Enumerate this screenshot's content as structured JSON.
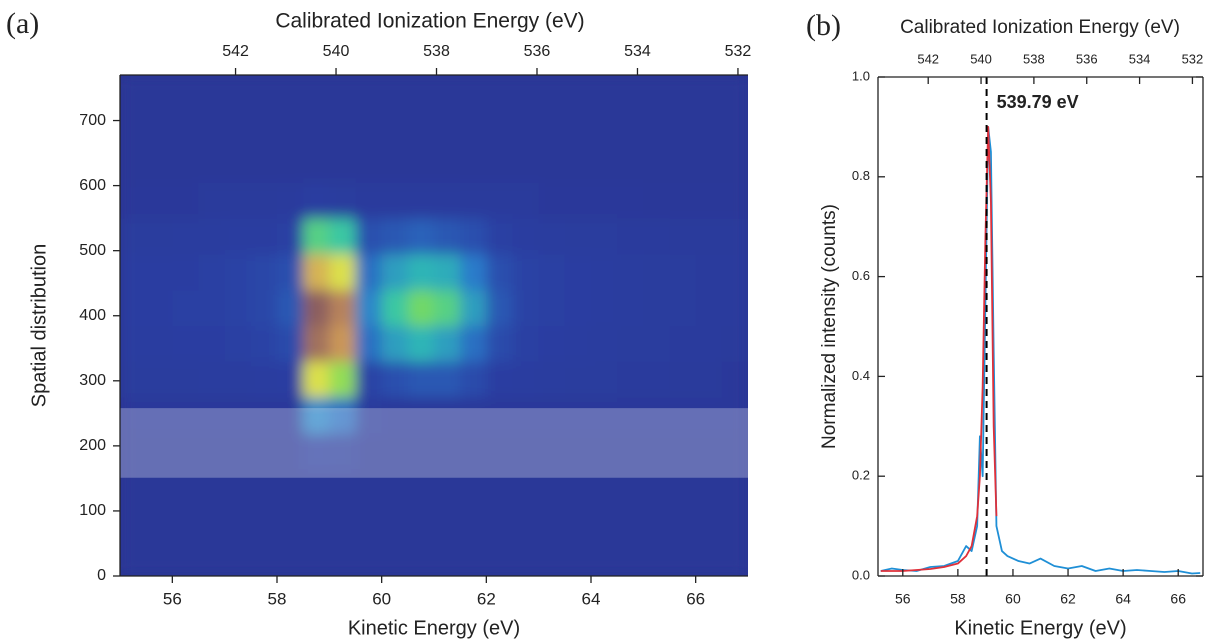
{
  "chart_data": [
    {
      "type": "heatmap",
      "panel_label": "(a)",
      "x2_label": "Calibrated Ionization Energy (eV)",
      "xlabel": "Kinetic Energy (eV)",
      "ylabel": "Spatial distribution",
      "xlim": [
        55,
        67
      ],
      "xticks": [
        56,
        58,
        60,
        62,
        64,
        66
      ],
      "ylim": [
        0,
        770
      ],
      "yticks": [
        0,
        100,
        200,
        300,
        400,
        500,
        600,
        700
      ],
      "x2lim": [
        544.3,
        531.8
      ],
      "x2ticks": [
        542,
        540,
        538,
        536,
        534,
        532
      ],
      "x_bins": [
        55,
        55.5,
        56,
        56.5,
        57,
        57.5,
        58,
        58.5,
        59,
        59.5,
        60,
        60.5,
        61,
        61.5,
        62,
        62.5,
        63,
        63.5,
        64,
        64.5,
        65,
        65.5,
        66,
        66.5,
        67
      ],
      "y_bins": [
        0,
        55,
        110,
        165,
        220,
        275,
        330,
        385,
        440,
        495,
        550,
        605,
        660,
        715,
        770
      ],
      "z": [
        [
          0.05,
          0.05,
          0.05,
          0.05,
          0.05,
          0.05,
          0.05,
          0.05,
          0.05,
          0.05,
          0.05,
          0.05,
          0.05,
          0.05,
          0.05,
          0.05,
          0.05,
          0.05,
          0.05,
          0.05,
          0.05,
          0.05,
          0.05,
          0.05
        ],
        [
          0.05,
          0.05,
          0.05,
          0.05,
          0.05,
          0.05,
          0.05,
          0.05,
          0.05,
          0.05,
          0.05,
          0.05,
          0.05,
          0.05,
          0.05,
          0.05,
          0.05,
          0.05,
          0.05,
          0.05,
          0.05,
          0.05,
          0.05,
          0.05
        ],
        [
          0.05,
          0.05,
          0.05,
          0.05,
          0.05,
          0.05,
          0.05,
          0.05,
          0.05,
          0.05,
          0.05,
          0.05,
          0.05,
          0.05,
          0.05,
          0.05,
          0.05,
          0.05,
          0.05,
          0.05,
          0.05,
          0.05,
          0.05,
          0.05
        ],
        [
          0.05,
          0.05,
          0.05,
          0.05,
          0.05,
          0.05,
          0.05,
          0.12,
          0.1,
          0.05,
          0.05,
          0.05,
          0.05,
          0.05,
          0.05,
          0.05,
          0.05,
          0.05,
          0.05,
          0.05,
          0.05,
          0.05,
          0.05,
          0.05
        ],
        [
          0.07,
          0.07,
          0.07,
          0.07,
          0.07,
          0.07,
          0.07,
          0.3,
          0.25,
          0.08,
          0.07,
          0.07,
          0.07,
          0.07,
          0.07,
          0.07,
          0.07,
          0.07,
          0.07,
          0.07,
          0.07,
          0.07,
          0.07,
          0.07
        ],
        [
          0.1,
          0.1,
          0.1,
          0.11,
          0.11,
          0.12,
          0.13,
          0.7,
          0.6,
          0.15,
          0.18,
          0.2,
          0.2,
          0.17,
          0.13,
          0.12,
          0.11,
          0.1,
          0.1,
          0.09,
          0.09,
          0.08,
          0.08,
          0.07
        ],
        [
          0.12,
          0.12,
          0.13,
          0.13,
          0.14,
          0.15,
          0.17,
          0.95,
          0.85,
          0.25,
          0.35,
          0.4,
          0.35,
          0.25,
          0.17,
          0.14,
          0.13,
          0.12,
          0.11,
          0.1,
          0.1,
          0.09,
          0.09,
          0.08
        ],
        [
          0.13,
          0.13,
          0.14,
          0.14,
          0.15,
          0.16,
          0.2,
          1.0,
          0.9,
          0.3,
          0.45,
          0.55,
          0.5,
          0.35,
          0.2,
          0.15,
          0.14,
          0.13,
          0.12,
          0.11,
          0.1,
          0.1,
          0.09,
          0.09
        ],
        [
          0.13,
          0.13,
          0.13,
          0.14,
          0.15,
          0.16,
          0.18,
          0.8,
          0.7,
          0.25,
          0.35,
          0.4,
          0.38,
          0.28,
          0.18,
          0.15,
          0.14,
          0.13,
          0.12,
          0.11,
          0.1,
          0.1,
          0.09,
          0.09
        ],
        [
          0.1,
          0.1,
          0.11,
          0.11,
          0.12,
          0.12,
          0.14,
          0.5,
          0.45,
          0.18,
          0.2,
          0.22,
          0.2,
          0.18,
          0.14,
          0.12,
          0.11,
          0.1,
          0.1,
          0.09,
          0.09,
          0.08,
          0.08,
          0.08
        ],
        [
          0.07,
          0.07,
          0.07,
          0.08,
          0.08,
          0.08,
          0.09,
          0.12,
          0.1,
          0.09,
          0.09,
          0.09,
          0.09,
          0.08,
          0.08,
          0.08,
          0.07,
          0.07,
          0.07,
          0.07,
          0.06,
          0.06,
          0.06,
          0.06
        ],
        [
          0.05,
          0.05,
          0.05,
          0.05,
          0.05,
          0.05,
          0.05,
          0.05,
          0.05,
          0.05,
          0.05,
          0.05,
          0.05,
          0.05,
          0.05,
          0.05,
          0.05,
          0.05,
          0.05,
          0.05,
          0.05,
          0.05,
          0.05,
          0.05
        ],
        [
          0.05,
          0.05,
          0.05,
          0.05,
          0.05,
          0.05,
          0.05,
          0.05,
          0.05,
          0.05,
          0.05,
          0.05,
          0.05,
          0.05,
          0.05,
          0.05,
          0.05,
          0.05,
          0.05,
          0.05,
          0.05,
          0.05,
          0.05,
          0.05
        ],
        [
          0.05,
          0.05,
          0.05,
          0.05,
          0.05,
          0.05,
          0.05,
          0.05,
          0.05,
          0.05,
          0.05,
          0.05,
          0.05,
          0.05,
          0.05,
          0.05,
          0.05,
          0.05,
          0.05,
          0.05,
          0.05,
          0.05,
          0.05,
          0.05
        ]
      ],
      "colormap": [
        "#2a3492",
        "#2b3fa3",
        "#2b7fcc",
        "#2fc3b0",
        "#7ddc5a",
        "#e6e04a",
        "#c9935a",
        "#8c5f5f"
      ],
      "highlight": [
        151,
        258
      ],
      "highlight_color": "#ffffff",
      "highlight_opacity": 0.28
    },
    {
      "type": "line",
      "panel_label": "(b)",
      "x2_label": "Calibrated Ionization Energy (eV)",
      "xlabel": "Kinetic Energy (eV)",
      "ylabel": "Normalized intensity (counts)",
      "xlim": [
        55.1,
        66.9
      ],
      "xticks": [
        56,
        58,
        60,
        62,
        64,
        66
      ],
      "ylim": [
        0,
        1.0
      ],
      "yticks": [
        {
          "value": 0,
          "label": "0.0"
        },
        0.2,
        0.4,
        0.6,
        0.8,
        {
          "value": 1.0,
          "label": "1.0"
        }
      ],
      "x2lim": [
        543.9,
        531.6
      ],
      "x2ticks": [
        542,
        540,
        538,
        536,
        534,
        532
      ],
      "x": [
        55.2,
        55.6,
        56.0,
        56.5,
        57.0,
        57.5,
        58.0,
        58.3,
        58.5,
        58.7,
        58.8,
        58.9,
        59.0,
        59.1,
        59.2,
        59.3,
        59.4,
        59.6,
        59.8,
        60.2,
        60.6,
        61.0,
        61.5,
        62.0,
        62.5,
        63.0,
        63.5,
        64.0,
        64.5,
        65.0,
        65.5,
        66.0,
        66.5,
        66.8
      ],
      "series": [
        {
          "color": "#1f8fd6",
          "values": [
            0.01,
            0.015,
            0.012,
            0.01,
            0.018,
            0.02,
            0.03,
            0.06,
            0.05,
            0.1,
            0.28,
            0.2,
            0.55,
            0.9,
            0.85,
            0.45,
            0.1,
            0.05,
            0.04,
            0.03,
            0.025,
            0.035,
            0.02,
            0.015,
            0.02,
            0.01,
            0.015,
            0.01,
            0.012,
            0.01,
            0.008,
            0.01,
            0.005,
            0.006
          ]
        },
        {
          "color": "#e0303a",
          "values": [
            0.01,
            0.01,
            0.01,
            0.012,
            0.014,
            0.018,
            0.025,
            0.04,
            0.06,
            0.12,
            0.2,
            0.38,
            0.68,
            0.9,
            0.75,
            0.3,
            0.12,
            null,
            null,
            null,
            null,
            null,
            null,
            null,
            null,
            null,
            null,
            null,
            null,
            null,
            null,
            null,
            null,
            null
          ]
        }
      ],
      "vline": {
        "value": 539.79,
        "axis": "x2",
        "label": "539.79 eV",
        "color": "#000000"
      }
    }
  ]
}
